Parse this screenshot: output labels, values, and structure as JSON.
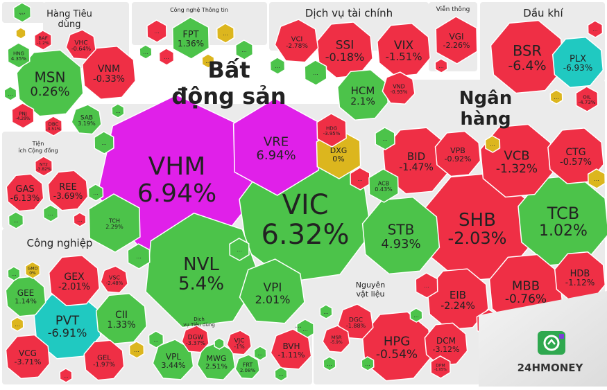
{
  "chart_data": {
    "type": "treemap",
    "colors": {
      "up": "#4cc34a",
      "down": "#ef2f45",
      "ceiling": "#e020e9",
      "floor": "#20c9c1",
      "flat": "#dcb61e",
      "background": "#ebebeb"
    },
    "sectors": [
      {
        "name": "Bất động sản",
        "stocks": [
          {
            "ticker": "VHM",
            "change": "6.94%",
            "value": 6.94
          },
          {
            "ticker": "VIC",
            "change": "6.32%",
            "value": 6.32
          },
          {
            "ticker": "NVL",
            "change": "5.4%",
            "value": 5.4
          },
          {
            "ticker": "VRE",
            "change": "6.94%",
            "value": 6.94
          },
          {
            "ticker": "VPI",
            "change": "2.01%",
            "value": 2.01
          },
          {
            "ticker": "DXG",
            "change": "0%",
            "value": 0
          },
          {
            "ticker": "HDG",
            "change": "-3.95%",
            "value": -3.95
          },
          {
            "ticker": "TCH",
            "change": "2.29%",
            "value": 2.29
          }
        ]
      },
      {
        "name": "Ngân hàng",
        "stocks": [
          {
            "ticker": "SHB",
            "change": "-2.03%",
            "value": -2.03
          },
          {
            "ticker": "TCB",
            "change": "1.02%",
            "value": 1.02
          },
          {
            "ticker": "STB",
            "change": "4.93%",
            "value": 4.93
          },
          {
            "ticker": "VCB",
            "change": "-1.32%",
            "value": -1.32
          },
          {
            "ticker": "BID",
            "change": "-1.47%",
            "value": -1.47
          },
          {
            "ticker": "VPB",
            "change": "-0.92%",
            "value": -0.92
          },
          {
            "ticker": "CTG",
            "change": "-0.57%",
            "value": -0.57
          },
          {
            "ticker": "MBB",
            "change": "-0.76%",
            "value": -0.76
          },
          {
            "ticker": "EIB",
            "change": "-2.24%",
            "value": -2.24
          },
          {
            "ticker": "HDB",
            "change": "-1.12%",
            "value": -1.12
          },
          {
            "ticker": "ACB",
            "change": "0.43%",
            "value": 0.43
          },
          {
            "ticker": "TPB",
            "change": "-0.31%",
            "value": -0.31
          }
        ]
      },
      {
        "name": "Dịch vụ tài chính",
        "stocks": [
          {
            "ticker": "SSI",
            "change": "-0.18%",
            "value": -0.18
          },
          {
            "ticker": "VIX",
            "change": "-1.51%",
            "value": -1.51
          },
          {
            "ticker": "HCM",
            "change": "2.1%",
            "value": 2.1
          },
          {
            "ticker": "VCI",
            "change": "-2.78%",
            "value": -2.78
          },
          {
            "ticker": "VND",
            "change": "-0.93%",
            "value": -0.93
          }
        ]
      },
      {
        "name": "Dầu khí",
        "stocks": [
          {
            "ticker": "BSR",
            "change": "-6.4%",
            "value": -6.4
          },
          {
            "ticker": "PLX",
            "change": "-6.93%",
            "value": -6.93
          },
          {
            "ticker": "OIL",
            "change": "-4.73%",
            "value": -4.73
          }
        ]
      },
      {
        "name": "Viễn thông",
        "stocks": [
          {
            "ticker": "VGI",
            "change": "-2.26%",
            "value": -2.26
          }
        ]
      },
      {
        "name": "Công nghệ Thông tin",
        "stocks": [
          {
            "ticker": "FPT",
            "change": "1.36%",
            "value": 1.36
          }
        ]
      },
      {
        "name": "Hàng Tiêu dùng",
        "stocks": [
          {
            "ticker": "MSN",
            "change": "0.26%",
            "value": 0.26
          },
          {
            "ticker": "VNM",
            "change": "-0.33%",
            "value": -0.33
          },
          {
            "ticker": "SAB",
            "change": "3.19%",
            "value": 3.19
          },
          {
            "ticker": "VHC",
            "change": "-0.64%",
            "value": -0.64
          },
          {
            "ticker": "HNG",
            "change": "4.35%",
            "value": 4.35
          },
          {
            "ticker": "BAF",
            "change": "-1.2%",
            "value": -1.2
          },
          {
            "ticker": "PNJ",
            "change": "-4.29%",
            "value": -4.29
          },
          {
            "ticker": "DBC",
            "change": "-3.51%",
            "value": -3.51
          }
        ]
      },
      {
        "name": "Tiện ích Cộng đồng",
        "stocks": [
          {
            "ticker": "GAS",
            "change": "-6.13%",
            "value": -6.13
          },
          {
            "ticker": "REE",
            "change": "-3.69%",
            "value": -3.69
          },
          {
            "ticker": "NT2",
            "change": "-3.82%",
            "value": -3.82
          }
        ]
      },
      {
        "name": "Công nghiệp",
        "stocks": [
          {
            "ticker": "PVT",
            "change": "-6.91%",
            "value": -6.91
          },
          {
            "ticker": "GEX",
            "change": "-2.01%",
            "value": -2.01
          },
          {
            "ticker": "CII",
            "change": "1.33%",
            "value": 1.33
          },
          {
            "ticker": "GEE",
            "change": "1.14%",
            "value": 1.14
          },
          {
            "ticker": "VCG",
            "change": "-3.71%",
            "value": -3.71
          },
          {
            "ticker": "GEL",
            "change": "-1.97%",
            "value": -1.97
          },
          {
            "ticker": "VSC",
            "change": "-2.48%",
            "value": -2.48
          },
          {
            "ticker": "GMD",
            "change": "0%",
            "value": 0
          }
        ]
      },
      {
        "name": "Dịch vụ Tiêu dùng",
        "stocks": [
          {
            "ticker": "VPL",
            "change": "3.44%",
            "value": 3.44
          },
          {
            "ticker": "MWG",
            "change": "2.51%",
            "value": 2.51
          },
          {
            "ticker": "DGW",
            "change": "-3.37%",
            "value": -3.37
          },
          {
            "ticker": "VJC",
            "change": "-1%",
            "value": -1
          },
          {
            "ticker": "FRT",
            "change": "2.08%",
            "value": 2.08
          }
        ]
      },
      {
        "name": "Nguyên vật liệu",
        "stocks": [
          {
            "ticker": "HPG",
            "change": "-0.54%",
            "value": -0.54
          },
          {
            "ticker": "DCM",
            "change": "-3.12%",
            "value": -3.12
          },
          {
            "ticker": "DGC",
            "change": "-1.88%",
            "value": -1.88
          },
          {
            "ticker": "MSR",
            "change": "-5.9%",
            "value": -5.9
          },
          {
            "ticker": "DPM",
            "change": "-1.05%",
            "value": -1.05
          }
        ]
      },
      {
        "name": "",
        "stocks": [
          {
            "ticker": "BVH",
            "change": "-1.11%",
            "value": -1.11
          }
        ]
      }
    ],
    "more_symbol": "...",
    "brand": "24HMONEY"
  }
}
